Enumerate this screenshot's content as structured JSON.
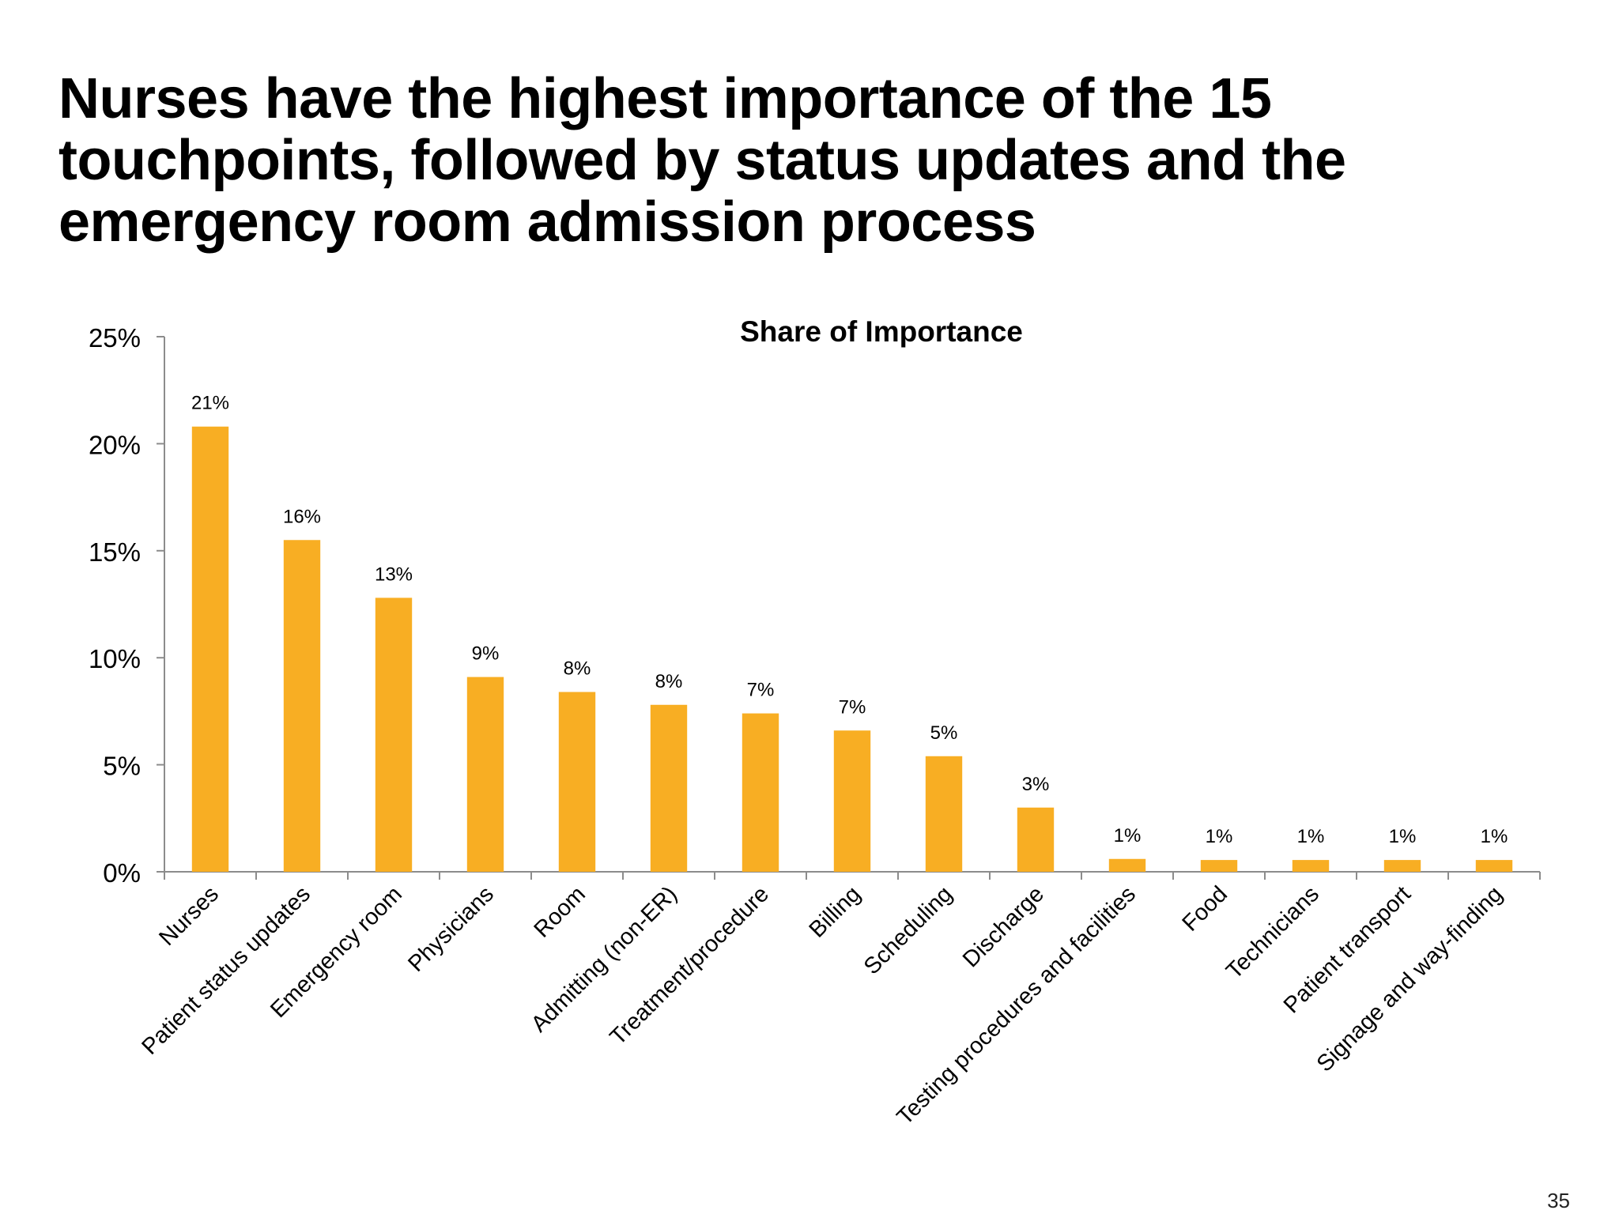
{
  "slide": {
    "title": "Nurses have the highest importance of the 15 touchpoints, followed by status updates and the emergency room admission process",
    "page_number": "35"
  },
  "colors": {
    "bar": "#F8AE23",
    "axis": "#8C8C8C",
    "text": "#000000"
  },
  "chart_data": {
    "type": "bar",
    "title": "Share of Importance",
    "xlabel": "",
    "ylabel": "",
    "ylim": [
      0,
      25
    ],
    "yticks": [
      0,
      5,
      10,
      15,
      20,
      25
    ],
    "ytick_labels": [
      "0%",
      "5%",
      "10%",
      "15%",
      "20%",
      "25%"
    ],
    "grid": false,
    "legend": "none",
    "categories": [
      "Nurses",
      "Patient status updates",
      "Emergency room",
      "Physicians",
      "Room",
      "Admitting (non-ER)",
      "Treatment/procedure",
      "Billing",
      "Scheduling",
      "Discharge",
      "Testing procedures and facilities",
      "Food",
      "Technicians",
      "Patient transport",
      "Signage and way-finding"
    ],
    "values": [
      20.8,
      15.5,
      12.8,
      9.1,
      8.4,
      7.8,
      7.4,
      6.6,
      5.4,
      3.0,
      0.6,
      0.55,
      0.55,
      0.55,
      0.55
    ],
    "data_labels": [
      "21%",
      "16%",
      "13%",
      "9%",
      "8%",
      "8%",
      "7%",
      "7%",
      "5%",
      "3%",
      "1%",
      "1%",
      "1%",
      "1%",
      "1%"
    ]
  }
}
